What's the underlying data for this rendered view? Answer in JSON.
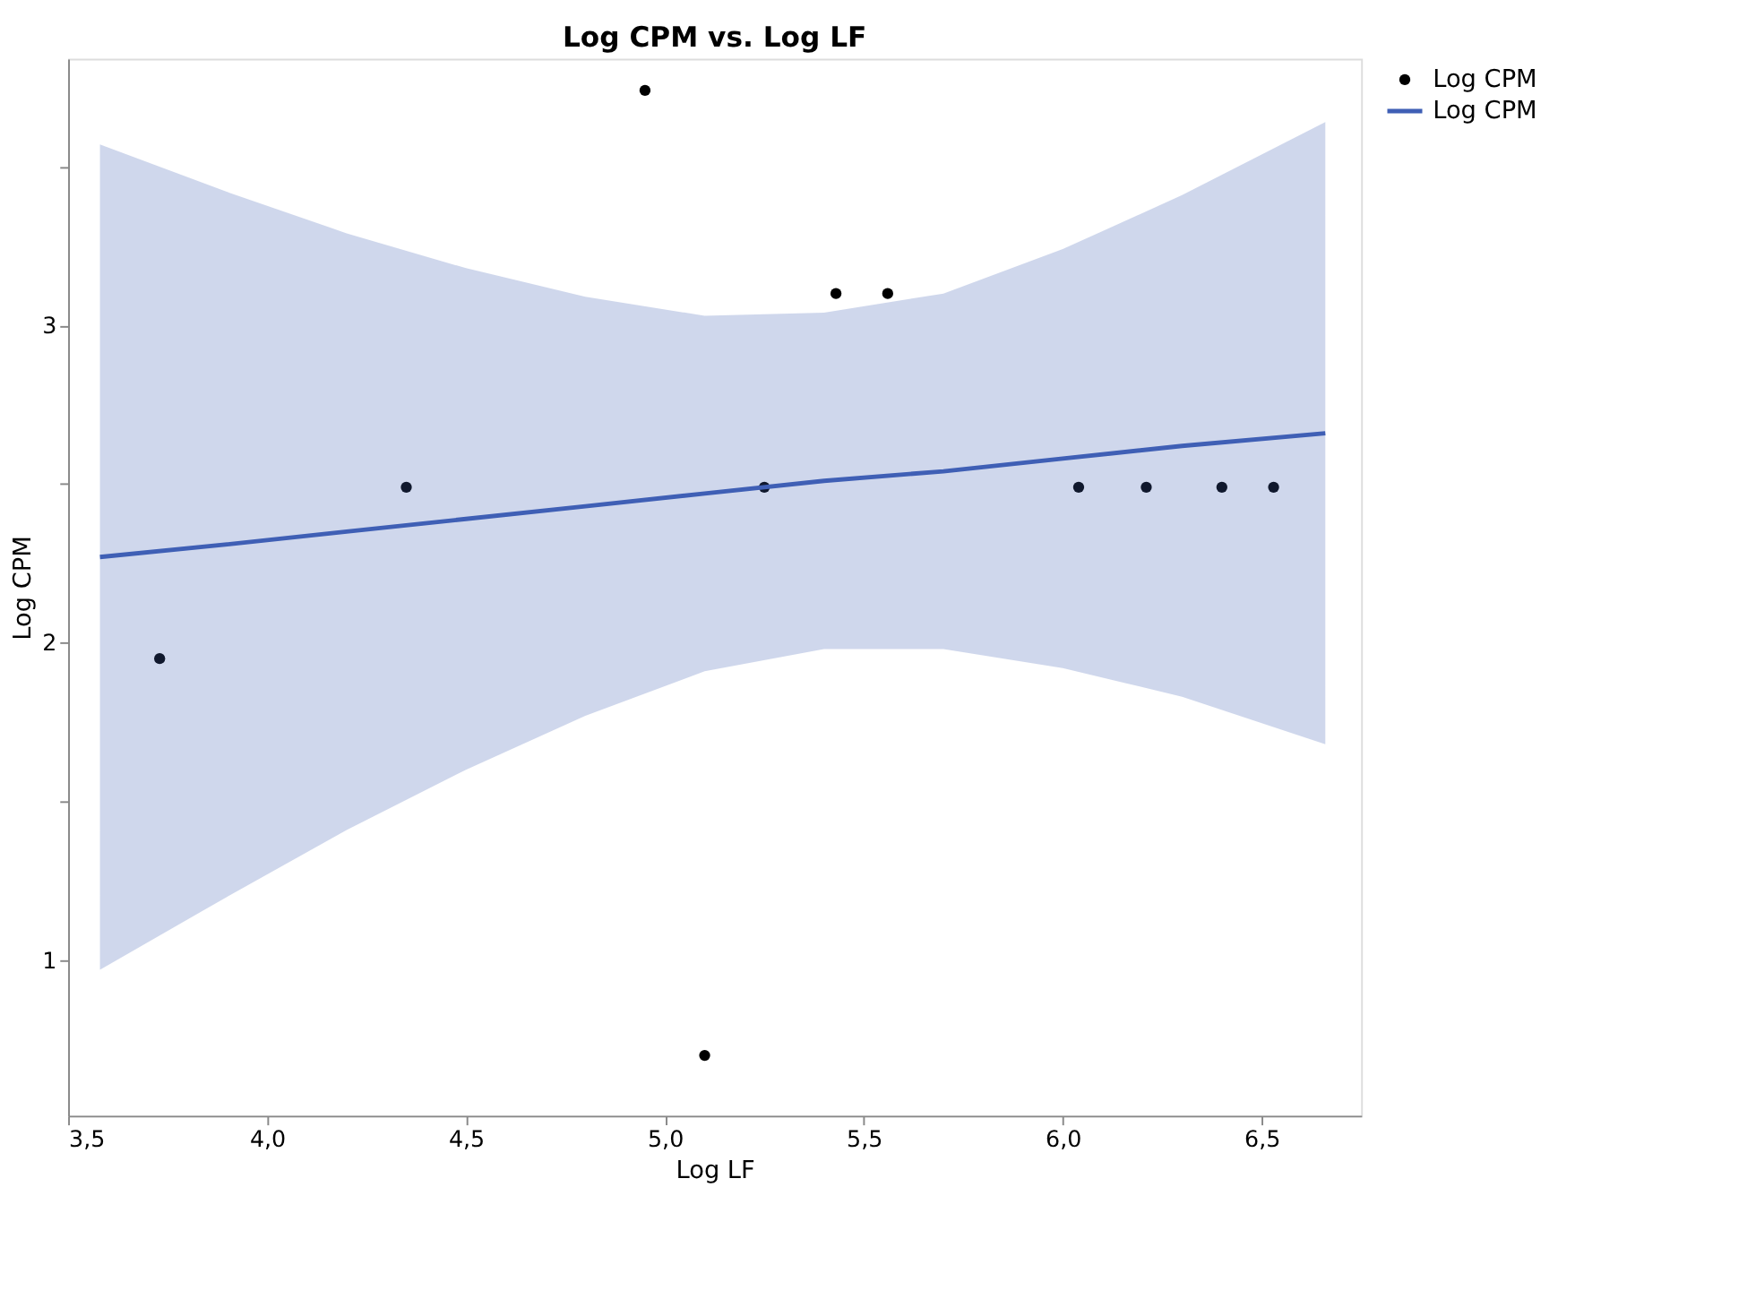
{
  "chart_data": {
    "type": "scatter",
    "title": "Log CPM vs. Log LF",
    "xlabel": "Log LF",
    "ylabel": "Log CPM",
    "xlim": [
      3.5,
      6.75
    ],
    "ylim": [
      0.51,
      3.84
    ],
    "xticks": [
      {
        "value": 3.5,
        "label": "3,5"
      },
      {
        "value": 4.0,
        "label": "4,0"
      },
      {
        "value": 4.5,
        "label": "4,5"
      },
      {
        "value": 5.0,
        "label": "5,0"
      },
      {
        "value": 5.5,
        "label": "5,5"
      },
      {
        "value": 6.0,
        "label": "6,0"
      },
      {
        "value": 6.5,
        "label": "6,5"
      }
    ],
    "yticks": [
      1,
      {
        "value": 1.5,
        "label": null
      },
      2,
      {
        "value": 2.5,
        "label": null
      },
      3,
      {
        "value": 3.5,
        "label": null
      }
    ],
    "grid": false,
    "legend": "top right",
    "series": [
      {
        "name": "Log CPM",
        "type": "scatter",
        "marker": "circle",
        "color": "#000000",
        "x": [
          3.73,
          4.35,
          4.95,
          5.1,
          5.25,
          5.43,
          5.56,
          6.04,
          6.21,
          6.4,
          6.53
        ],
        "values": [
          1.95,
          2.49,
          3.74,
          0.7,
          2.49,
          3.1,
          3.1,
          2.49,
          2.49,
          2.49,
          2.49
        ]
      },
      {
        "name": "Log CPM",
        "type": "line",
        "marker": "none",
        "line_style": "solid",
        "color": "#3f5fb5",
        "x": [
          3.58,
          3.9,
          4.2,
          4.5,
          4.8,
          5.1,
          5.4,
          5.7,
          6.0,
          6.3,
          6.66
        ],
        "values": [
          2.27,
          2.31,
          2.35,
          2.39,
          2.43,
          2.47,
          2.51,
          2.54,
          2.58,
          2.62,
          2.66
        ],
        "lower": [
          0.97,
          1.2,
          1.41,
          1.6,
          1.77,
          1.91,
          1.98,
          1.98,
          1.92,
          1.83,
          1.68
        ],
        "upper": [
          3.57,
          3.42,
          3.29,
          3.18,
          3.09,
          3.03,
          3.04,
          3.1,
          3.24,
          3.41,
          3.64
        ]
      }
    ]
  }
}
